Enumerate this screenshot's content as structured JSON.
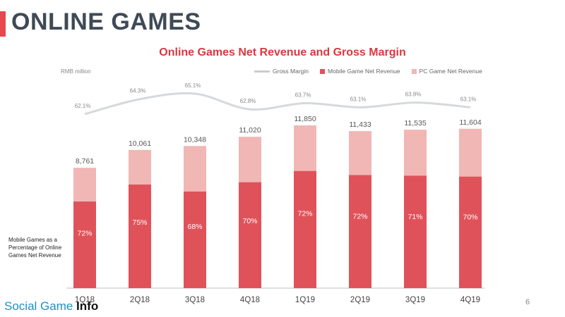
{
  "page": {
    "title": "ONLINE GAMES",
    "page_number": "6",
    "side_note": "Mobile Games as a Percentage of Online Games Net Revenue",
    "watermark_text": "Social Game ",
    "watermark_brand": "Info"
  },
  "colors": {
    "mobile": "#e0525a",
    "pc": "#f0b7b5",
    "margin_line": "#d6d9dc",
    "accent": "#e8474f"
  },
  "chart_data": {
    "type": "bar",
    "title": "Online Games Net Revenue and Gross Margin",
    "unit_label": "RMB million",
    "categories": [
      "1Q18",
      "2Q18",
      "3Q18",
      "4Q18",
      "1Q19",
      "2Q19",
      "3Q19",
      "4Q19"
    ],
    "stacked": true,
    "totals": [
      8761,
      10061,
      10348,
      11020,
      11850,
      11433,
      11535,
      11604
    ],
    "total_labels": [
      "8,761",
      "10,061",
      "10,348",
      "11,020",
      "11,850",
      "11,433",
      "11,535",
      "11,604"
    ],
    "mobile_share_labels": [
      "72%",
      "75%",
      "68%",
      "70%",
      "72%",
      "72%",
      "71%",
      "70%"
    ],
    "series": [
      {
        "name": "Mobile Game Net Revenue",
        "values": [
          6308,
          7546,
          7037,
          7714,
          8532,
          8232,
          8190,
          8123
        ]
      },
      {
        "name": "PC Game Net Revenue",
        "values": [
          2453,
          2515,
          3311,
          3306,
          3318,
          3201,
          3345,
          3481
        ]
      }
    ],
    "gross_margin": {
      "name": "Gross Margin",
      "values": [
        62.1,
        64.3,
        65.1,
        62.8,
        63.7,
        63.1,
        63.8,
        63.1
      ],
      "labels": [
        "62.1%",
        "64.3%",
        "65.1%",
        "62.8%",
        "63.7%",
        "63.1%",
        "63.8%",
        "63.1%"
      ]
    },
    "ylim": [
      0,
      13000
    ],
    "grid": false,
    "legend_position": "top-right"
  }
}
